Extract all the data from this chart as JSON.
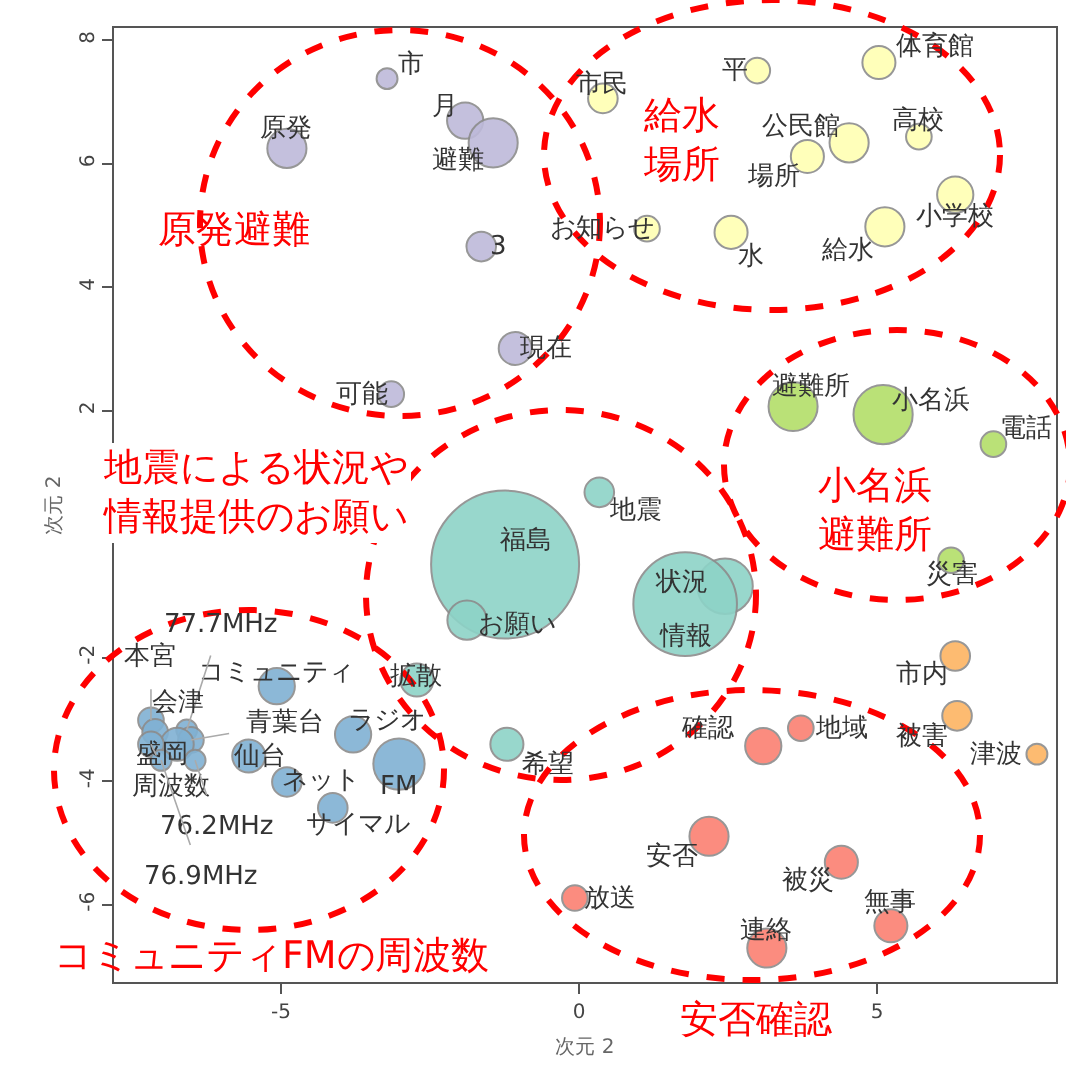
{
  "chart_data": {
    "type": "bubble",
    "xlabel": "次元 2",
    "ylabel": "次元 2",
    "xlim": [
      -7.8,
      8.0
    ],
    "ylim": [
      -7.25,
      8.2
    ],
    "xticks": [
      -5,
      0,
      5
    ],
    "yticks": [
      -6,
      -4,
      -2,
      2,
      4,
      6,
      8
    ],
    "annotations": [
      "原発避難",
      "給水場所",
      "小名浜避難所",
      "地震による状況や情報提供のお願い",
      "コミュニティFMの周波数",
      "安否確認",
      {
        "text": "市",
        "x": -3.22,
        "y": 7.38
      },
      {
        "text": "月",
        "x": -1.91,
        "y": 6.7
      },
      {
        "text": "避難",
        "x": -1.44,
        "y": 6.34
      },
      {
        "text": "原発",
        "x": -4.9,
        "y": 6.25
      },
      {
        "text": "3",
        "x": -1.64,
        "y": 4.66
      },
      {
        "text": "現在",
        "x": -1.07,
        "y": 3.01
      },
      {
        "text": "可能",
        "x": -3.15,
        "y": 2.27
      },
      {
        "text": "市民",
        "x": 0.4,
        "y": 7.06
      },
      {
        "text": "平",
        "x": 2.99,
        "y": 7.51
      },
      {
        "text": "体育館",
        "x": 5.03,
        "y": 7.64
      },
      {
        "text": "公民館",
        "x": 4.53,
        "y": 6.34
      },
      {
        "text": "場所",
        "x": 3.83,
        "y": 6.12
      },
      {
        "text": "高校",
        "x": 5.7,
        "y": 6.44
      },
      {
        "text": "お知らせ",
        "x": 1.14,
        "y": 4.95
      },
      {
        "text": "水",
        "x": 2.55,
        "y": 4.89
      },
      {
        "text": "給水",
        "x": 5.13,
        "y": 4.98
      },
      {
        "text": "小学校",
        "x": 6.31,
        "y": 5.5
      },
      {
        "text": "避難所",
        "x": 3.59,
        "y": 2.07
      },
      {
        "text": "小名浜",
        "x": 5.1,
        "y": 1.94
      },
      {
        "text": "電話",
        "x": 6.95,
        "y": 1.46
      },
      {
        "text": "災害",
        "x": 6.24,
        "y": -0.42
      },
      {
        "text": "地震",
        "x": 0.34,
        "y": 0.68
      },
      {
        "text": "福島",
        "x": -1.24,
        "y": -0.49
      },
      {
        "text": "お願い",
        "x": -1.88,
        "y": -1.39
      },
      {
        "text": "状況",
        "x": 2.45,
        "y": -0.84
      },
      {
        "text": "情報",
        "x": 1.78,
        "y": -1.13
      },
      {
        "text": "拡散",
        "x": -2.72,
        "y": -2.36
      },
      {
        "text": "希望",
        "x": -1.21,
        "y": -3.4
      },
      {
        "text": "コミュニティ",
        "x": -5.07,
        "y": -2.46
      },
      {
        "text": "ラジオ",
        "x": -3.79,
        "y": -3.24
      },
      {
        "text": "FM",
        "x": -3.02,
        "y": -3.72
      },
      {
        "text": "仙台",
        "x": -5.54,
        "y": -3.59
      },
      {
        "text": "ネット",
        "x": -4.9,
        "y": -4.01
      },
      {
        "text": "サイマル",
        "x": -4.13,
        "y": -4.43
      },
      {
        "text": "77.7MHz",
        "x": -6.58,
        "y": -3.17
      },
      {
        "text": "本宮",
        "x": -7.18,
        "y": -3.01
      },
      {
        "text": "会津",
        "x": -7.11,
        "y": -3.2
      },
      {
        "text": "青葉台",
        "x": -6.51,
        "y": -3.33
      },
      {
        "text": "盛岡",
        "x": -6.74,
        "y": -3.4
      },
      {
        "text": "周波数",
        "x": -7.18,
        "y": -3.4
      },
      {
        "text": "76.2MHz",
        "x": -6.44,
        "y": -3.66
      },
      {
        "text": "76.9MHz",
        "x": -7.01,
        "y": -3.66
      },
      {
        "text": "市内",
        "x": 6.31,
        "y": -1.97
      },
      {
        "text": "被害",
        "x": 6.34,
        "y": -2.94
      },
      {
        "text": "津波",
        "x": 7.68,
        "y": -3.56
      },
      {
        "text": "確認",
        "x": 3.09,
        "y": -3.43
      },
      {
        "text": "地域",
        "x": 3.72,
        "y": -3.14
      },
      {
        "text": "安否",
        "x": 2.18,
        "y": -4.89
      },
      {
        "text": "被災",
        "x": 4.4,
        "y": -5.31
      },
      {
        "text": "放送",
        "x": -0.07,
        "y": -5.89
      },
      {
        "text": "無事",
        "x": 5.23,
        "y": -6.34
      },
      {
        "text": "連絡",
        "x": 3.15,
        "y": -6.7
      }
    ],
    "series": [
      {
        "color": "#bebada",
        "x": [
          -3.22,
          -1.91,
          -1.44,
          -4.9,
          -1.64,
          -1.07,
          -3.15
        ],
        "values": [
          7.38,
          6.7,
          6.34,
          6.25,
          4.66,
          3.01,
          2.27
        ],
        "sizes": [
          0.02,
          0.06,
          0.11,
          0.07,
          0.04,
          0.05,
          0.03
        ]
      },
      {
        "color": "#ffffb3",
        "x": [
          0.4,
          2.99,
          5.03,
          4.53,
          3.83,
          5.7,
          1.14,
          2.55,
          5.13,
          6.31
        ],
        "values": [
          7.06,
          7.51,
          7.64,
          6.34,
          6.12,
          6.44,
          4.95,
          4.89,
          4.98,
          5.5
        ],
        "sizes": [
          0.04,
          0.03,
          0.05,
          0.07,
          0.05,
          0.03,
          0.03,
          0.05,
          0.07,
          0.06
        ]
      },
      {
        "color": "#b3de69",
        "x": [
          3.59,
          5.1,
          6.95,
          6.24
        ],
        "values": [
          2.07,
          1.94,
          1.46,
          -0.42
        ],
        "sizes": [
          0.11,
          0.16,
          0.03,
          0.03
        ]
      },
      {
        "color": "#8dd3c7",
        "x": [
          0.34,
          -1.24,
          -1.88,
          2.45,
          1.78,
          -2.72,
          -1.21
        ],
        "values": [
          0.68,
          -0.49,
          -1.39,
          -0.84,
          -1.13,
          -2.36,
          -3.4
        ],
        "sizes": [
          0.04,
          1,
          0.07,
          0.14,
          0.49,
          0.05,
          0.05
        ]
      },
      {
        "color": "#80b1d3",
        "x": [
          -5.07,
          -3.79,
          -3.02,
          -5.54,
          -4.9,
          -4.13,
          -6.58,
          -7.18,
          -7.11,
          -6.51,
          -6.74,
          -7.18,
          -6.44,
          -7.01
        ],
        "values": [
          -2.46,
          -3.24,
          -3.72,
          -3.59,
          -4.01,
          -4.43,
          -3.17,
          -3.01,
          -3.2,
          -3.33,
          -3.4,
          -3.4,
          -3.66,
          -3.66
        ],
        "sizes": [
          0.06,
          0.06,
          0.12,
          0.05,
          0.04,
          0.04,
          0.02,
          0.03,
          0.03,
          0.03,
          0.05,
          0.03,
          0.02,
          0.02
        ]
      },
      {
        "color": "#fdb462",
        "x": [
          6.31,
          6.34,
          7.68
        ],
        "values": [
          -1.97,
          -2.94,
          -3.56
        ],
        "sizes": [
          0.04,
          0.04,
          0.02
        ]
      },
      {
        "color": "#fb8072",
        "x": [
          3.09,
          3.72,
          2.18,
          4.4,
          -0.07,
          5.23,
          3.15
        ],
        "values": [
          -3.43,
          -3.14,
          -4.89,
          -5.31,
          -5.89,
          -6.34,
          -6.7
        ],
        "sizes": [
          0.06,
          0.03,
          0.07,
          0.05,
          0.03,
          0.05,
          0.07
        ]
      }
    ]
  }
}
